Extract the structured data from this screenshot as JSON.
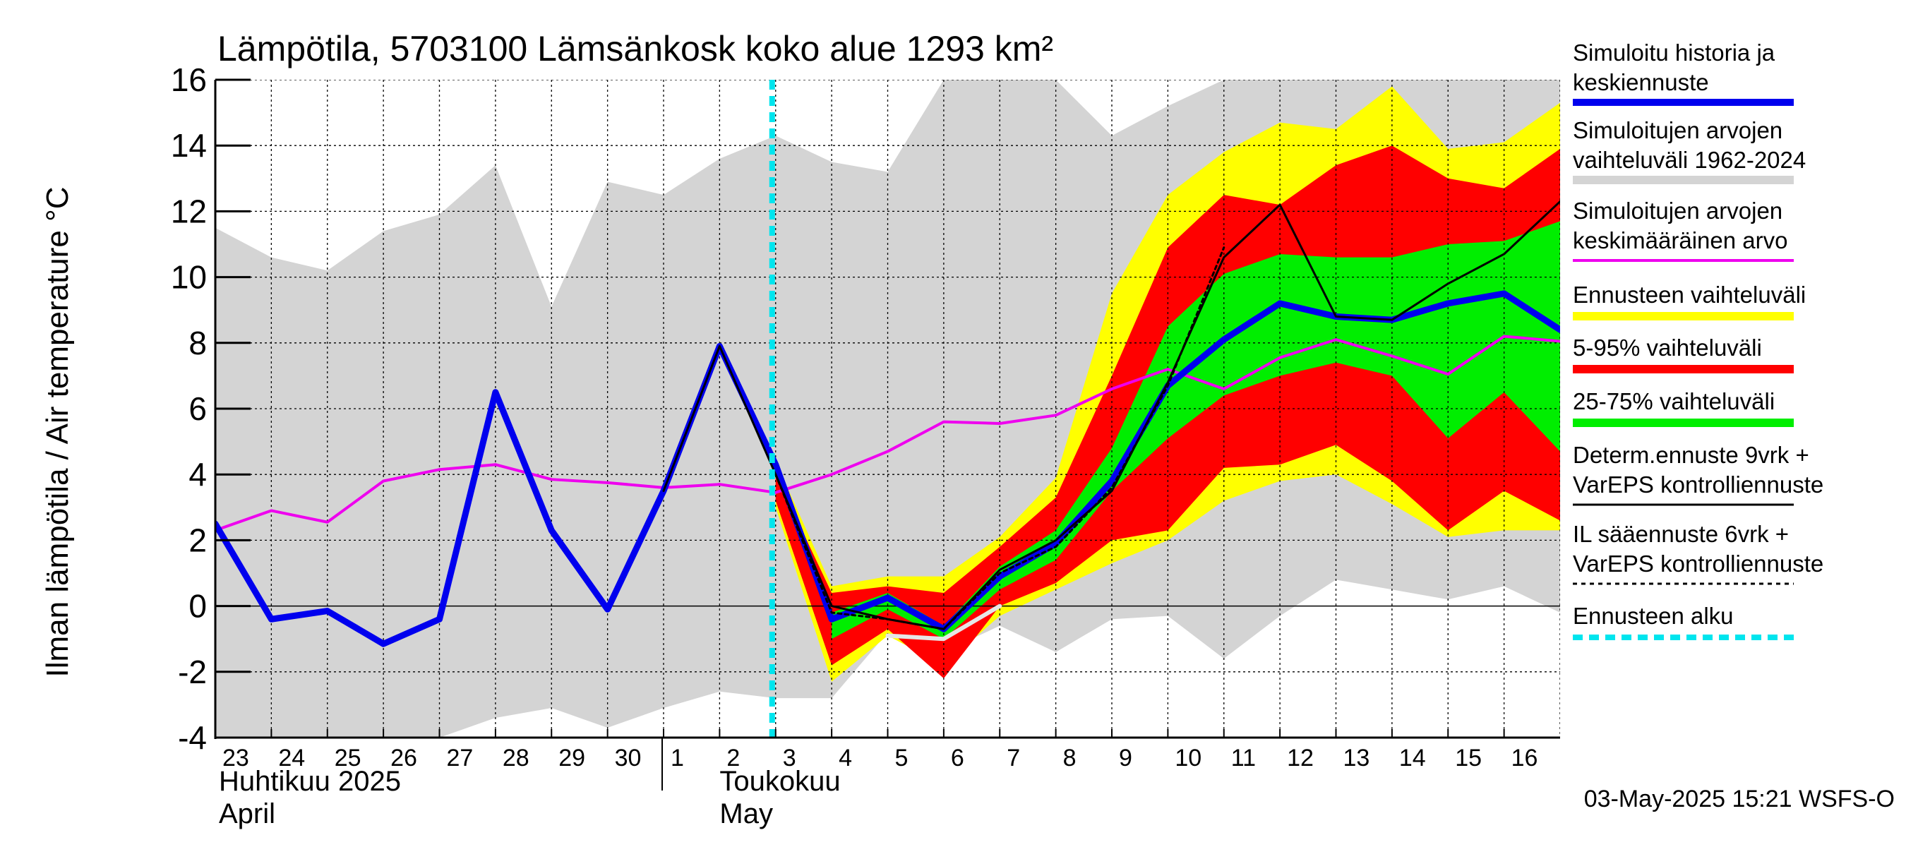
{
  "chart_data": {
    "type": "line",
    "title": "Lämpötila, 5703100 Lämsänkosk koko alue 1293 km²",
    "ylabel": "Ilman lämpötila / Air temperature   °C",
    "ylim": [
      -4,
      16
    ],
    "yticks": [
      -4,
      -2,
      0,
      2,
      4,
      6,
      8,
      10,
      12,
      14,
      16
    ],
    "xlim": [
      0,
      24
    ],
    "x_tick_labels": [
      "23",
      "24",
      "25",
      "26",
      "27",
      "28",
      "29",
      "30",
      "1",
      "2",
      "3",
      "4",
      "5",
      "6",
      "7",
      "8",
      "9",
      "10",
      "11",
      "12",
      "13",
      "14",
      "15",
      "16"
    ],
    "month_labels": [
      {
        "fi": "Huhtikuu  2025",
        "en": "April"
      },
      {
        "fi": "Toukokuu",
        "en": "May"
      }
    ],
    "forecast_start": 10,
    "timestamp": "03-May-2025 15:21 WSFS-O",
    "colors": {
      "sim_range": "#d4d4d4",
      "forecast_range": "#ffff00",
      "p5_95": "#ff0000",
      "p25_75": "#00ee00",
      "simulated": "#0000ee",
      "mean": "#ee00ee",
      "deterministic": "#000000",
      "il_forecast": "#000000",
      "forecast_start": "#00e5ee",
      "hindcast_white": "#e6e6e6"
    },
    "series": {
      "sim_range": {
        "x": [
          0,
          1,
          2,
          3,
          4,
          5,
          6,
          7,
          8,
          9,
          10,
          11,
          12,
          13,
          14,
          15,
          16,
          17,
          18,
          19,
          20,
          21,
          22,
          23,
          24
        ],
        "upper": [
          11.5,
          10.6,
          10.2,
          11.4,
          11.9,
          13.4,
          9.1,
          12.9,
          12.5,
          13.6,
          14.3,
          13.5,
          13.2,
          16,
          16,
          16,
          14.3,
          15.2,
          16,
          16,
          16,
          16,
          16,
          16,
          16
        ],
        "lower": [
          -4,
          -4,
          -4,
          -4,
          -4,
          -3.4,
          -3.1,
          -3.7,
          -3.1,
          -2.6,
          -2.8,
          -2.8,
          -0.8,
          -1.4,
          -0.6,
          -1.4,
          -0.4,
          -0.3,
          -1.6,
          -0.3,
          0.8,
          0.5,
          0.2,
          0.6,
          -0.2
        ]
      },
      "forecast_range": {
        "x": [
          10,
          11,
          12,
          13,
          14,
          15,
          16,
          17,
          18,
          19,
          20,
          21,
          22,
          23,
          24
        ],
        "upper": [
          4.4,
          0.6,
          0.9,
          0.9,
          2.1,
          3.9,
          9.5,
          12.5,
          13.8,
          14.7,
          14.5,
          15.8,
          13.9,
          14.1,
          15.3
        ],
        "lower": [
          3.0,
          -2.3,
          -0.9,
          -1.8,
          -0.3,
          0.5,
          1.3,
          2.0,
          3.2,
          3.8,
          4.0,
          3.1,
          2.1,
          2.3,
          2.3
        ]
      },
      "p5_95": {
        "x": [
          10,
          11,
          12,
          13,
          14,
          15,
          16,
          17,
          18,
          19,
          20,
          21,
          22,
          23,
          24
        ],
        "upper": [
          4.0,
          0.4,
          0.6,
          0.4,
          1.8,
          3.3,
          7.0,
          10.9,
          12.5,
          12.2,
          13.4,
          14.0,
          13.0,
          12.7,
          13.9
        ],
        "lower": [
          3.2,
          -1.8,
          -0.7,
          -2.2,
          0.0,
          0.7,
          2.0,
          2.3,
          4.2,
          4.3,
          4.9,
          3.8,
          2.3,
          3.5,
          2.6
        ]
      },
      "p25_75": {
        "x": [
          11,
          12,
          13,
          14,
          15,
          16,
          17,
          18,
          19,
          20,
          21,
          22,
          23,
          24
        ],
        "upper": [
          -0.2,
          0.4,
          -0.6,
          1.2,
          2.3,
          4.8,
          8.5,
          10.1,
          10.7,
          10.6,
          10.6,
          11.0,
          11.1,
          11.7
        ],
        "lower": [
          -1.0,
          -0.1,
          -1.0,
          0.5,
          1.4,
          3.5,
          5.1,
          6.4,
          7.0,
          7.4,
          7.0,
          5.1,
          6.5,
          4.7
        ]
      },
      "simulated": {
        "x": [
          0,
          1,
          2,
          3,
          4,
          5,
          6,
          7,
          8,
          9,
          10,
          11,
          12,
          13,
          14,
          15,
          16,
          17,
          18,
          19,
          20,
          21,
          22,
          23,
          24
        ],
        "y": [
          2.5,
          -0.4,
          -0.15,
          -1.15,
          -0.4,
          6.5,
          2.3,
          -0.1,
          3.5,
          7.9,
          4.3,
          -0.4,
          0.25,
          -0.7,
          0.9,
          1.9,
          3.8,
          6.7,
          8.1,
          9.2,
          8.8,
          8.7,
          9.2,
          9.5,
          8.4
        ]
      },
      "mean": {
        "x": [
          0,
          1,
          2,
          3,
          4,
          5,
          6,
          7,
          8,
          9,
          10,
          11,
          12,
          13,
          14,
          15,
          16,
          17,
          18,
          19,
          20,
          21,
          22,
          23,
          24
        ],
        "y": [
          2.3,
          2.9,
          2.55,
          3.8,
          4.15,
          4.3,
          3.85,
          3.75,
          3.6,
          3.7,
          3.45,
          4.0,
          4.7,
          5.6,
          5.55,
          5.8,
          6.6,
          7.2,
          6.6,
          7.55,
          8.1,
          7.6,
          7.05,
          8.2,
          8.05
        ]
      },
      "deterministic": {
        "x": [
          8,
          9,
          10,
          11,
          12,
          13,
          14,
          15,
          16,
          17,
          18,
          19,
          20,
          21,
          22,
          23,
          24
        ],
        "y": [
          3.5,
          7.9,
          4.0,
          0.0,
          -0.4,
          -0.7,
          1.1,
          2.0,
          3.5,
          6.8,
          10.6,
          12.2,
          8.8,
          8.7,
          9.8,
          10.7,
          12.3
        ]
      },
      "il_forecast": {
        "x": [
          10,
          11,
          12,
          13,
          14,
          15,
          16,
          17,
          18
        ],
        "y": [
          4.0,
          -0.2,
          -0.4,
          -0.7,
          1.0,
          1.8,
          3.6,
          6.7,
          10.9
        ]
      },
      "hindcast_white": {
        "x": [
          12,
          13,
          14
        ],
        "y": [
          -0.9,
          -1.0,
          0.0
        ]
      }
    },
    "legend": [
      {
        "line1": "Simuloitu historia ja",
        "line2": "keskiennuste",
        "key": "simulated"
      },
      {
        "line1": "Simuloitujen arvojen",
        "line2": "vaihteluväli 1962-2024",
        "key": "sim_range"
      },
      {
        "line1": "Simuloitujen arvojen",
        "line2": "keskimääräinen arvo",
        "key": "mean"
      },
      {
        "line1": "Ennusteen vaihteluväli",
        "line2": "",
        "key": "forecast_range"
      },
      {
        "line1": "5-95% vaihteluväli",
        "line2": "",
        "key": "p5_95"
      },
      {
        "line1": "25-75% vaihteluväli",
        "line2": "",
        "key": "p25_75"
      },
      {
        "line1": "Determ.ennuste 9vrk  +",
        "line2": "VarEPS kontrolliennuste",
        "key": "deterministic"
      },
      {
        "line1": "IL sääennuste 6vrk  +",
        "line2": "  VarEPS kontrolliennuste",
        "key": "il_forecast"
      },
      {
        "line1": "Ennusteen alku",
        "line2": "",
        "key": "forecast_start"
      }
    ]
  }
}
